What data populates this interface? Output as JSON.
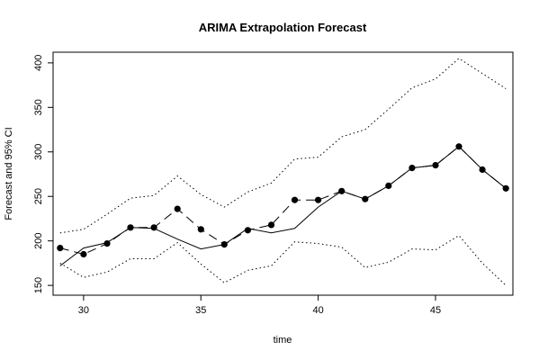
{
  "chart_data": {
    "type": "line",
    "title": "ARIMA Extrapolation Forecast",
    "xlabel": "time",
    "ylabel": "Forecast and 95% CI",
    "xlim": [
      28.7,
      48.3
    ],
    "ylim": [
      139,
      412
    ],
    "x_ticks": [
      30,
      35,
      40,
      45
    ],
    "y_ticks": [
      150,
      200,
      250,
      300,
      350,
      400
    ],
    "grid": false,
    "legend": "none",
    "x": [
      29,
      30,
      31,
      32,
      33,
      34,
      35,
      36,
      37,
      38,
      39,
      40,
      41,
      42,
      43,
      44,
      45,
      46,
      47,
      48
    ],
    "series": [
      {
        "role": "actual",
        "style": "dashed line with filled points",
        "values": [
          192,
          185,
          197,
          215,
          215,
          236,
          213,
          196,
          212,
          218,
          246,
          246,
          256,
          247,
          262,
          282,
          285,
          306,
          280,
          259
        ]
      },
      {
        "role": "forecast",
        "style": "solid line",
        "values": [
          172,
          192,
          198,
          215,
          214,
          202,
          191,
          196,
          214,
          209,
          214,
          238,
          256,
          247,
          262,
          282,
          285,
          306,
          280,
          259
        ]
      },
      {
        "role": "upper_95",
        "style": "dotted line",
        "values": [
          209,
          213,
          230,
          248,
          251,
          273,
          252,
          238,
          255,
          265,
          292,
          294,
          317,
          325,
          348,
          372,
          382,
          405,
          388,
          371
        ]
      },
      {
        "role": "lower_95",
        "style": "dotted line",
        "values": [
          175,
          159,
          165,
          180,
          180,
          198,
          174,
          153,
          167,
          172,
          199,
          197,
          193,
          170,
          176,
          191,
          190,
          206,
          175,
          150
        ]
      }
    ]
  }
}
